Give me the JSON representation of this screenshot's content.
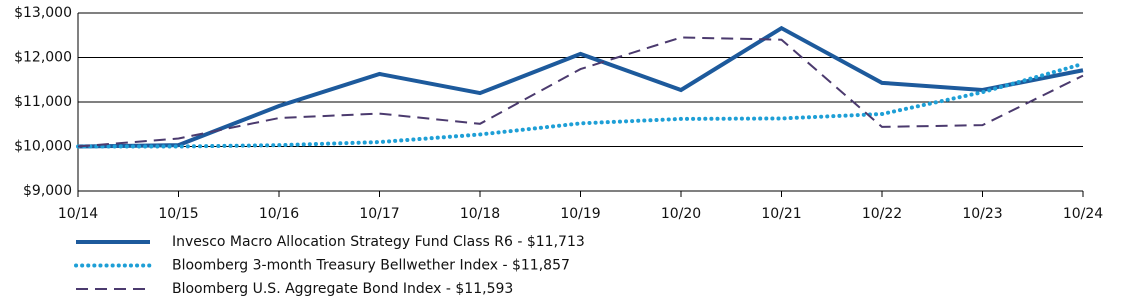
{
  "chart_data": {
    "type": "line",
    "categories": [
      "10/14",
      "10/15",
      "10/16",
      "10/17",
      "10/18",
      "10/19",
      "10/20",
      "10/21",
      "10/22",
      "10/23",
      "10/24"
    ],
    "series": [
      {
        "name": "Invesco Macro Allocation Strategy Fund Class R6 - $11,713",
        "color": "#1d5a9c",
        "style": "solid",
        "values": [
          10000,
          10030,
          10910,
          11630,
          11200,
          12080,
          11270,
          12660,
          11430,
          11270,
          11713
        ]
      },
      {
        "name": "Bloomberg 3-month Treasury Bellwether Index - $11,857",
        "color": "#1e9fd6",
        "style": "dotted",
        "values": [
          10000,
          10000,
          10030,
          10100,
          10270,
          10520,
          10620,
          10630,
          10730,
          11220,
          11857
        ]
      },
      {
        "name": "Bloomberg U.S. Aggregate Bond Index - $11,593",
        "color": "#4b3a6e",
        "style": "dashed",
        "values": [
          10000,
          10180,
          10640,
          10740,
          10510,
          11740,
          12450,
          12400,
          10440,
          10480,
          11593
        ]
      }
    ],
    "ylim": [
      9000,
      13000
    ],
    "yticks": [
      {
        "value": 9000,
        "label": "$9,000"
      },
      {
        "value": 10000,
        "label": "$10,000"
      },
      {
        "value": 11000,
        "label": "$11,000"
      },
      {
        "value": 12000,
        "label": "$12,000"
      },
      {
        "value": 13000,
        "label": "$13,000"
      }
    ],
    "grid": true
  }
}
